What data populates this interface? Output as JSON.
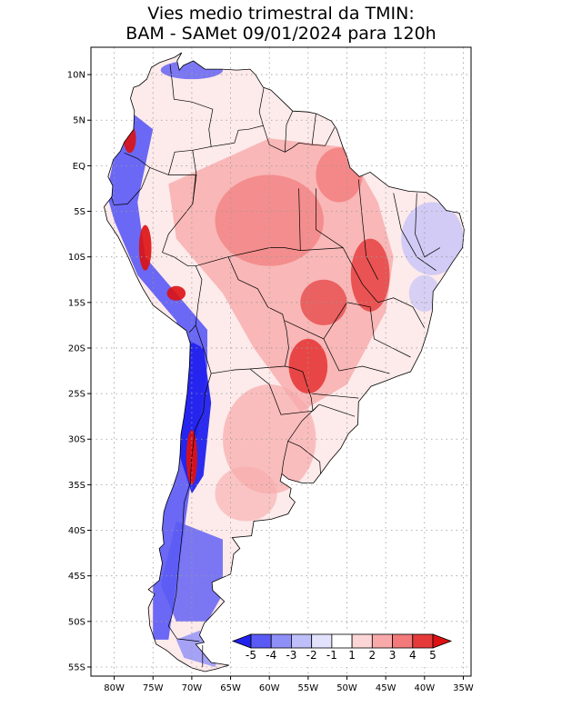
{
  "title": {
    "line1": "Vies medio trimestral da TMIN:",
    "line2": "BAM - SAMet 09/01/2024  para 120h"
  },
  "map": {
    "lon_range": [
      -83,
      -34
    ],
    "lat_range": [
      -56,
      13
    ],
    "grid": true,
    "lon_ticks": [
      {
        "v": -80,
        "label": "80W"
      },
      {
        "v": -75,
        "label": "75W"
      },
      {
        "v": -70,
        "label": "70W"
      },
      {
        "v": -65,
        "label": "65W"
      },
      {
        "v": -60,
        "label": "60W"
      },
      {
        "v": -55,
        "label": "55W"
      },
      {
        "v": -50,
        "label": "50W"
      },
      {
        "v": -45,
        "label": "45W"
      },
      {
        "v": -40,
        "label": "40W"
      },
      {
        "v": -35,
        "label": "35W"
      }
    ],
    "lat_ticks": [
      {
        "v": 10,
        "label": "10N"
      },
      {
        "v": 5,
        "label": "5N"
      },
      {
        "v": 0,
        "label": "EQ"
      },
      {
        "v": -5,
        "label": "5S"
      },
      {
        "v": -10,
        "label": "10S"
      },
      {
        "v": -15,
        "label": "15S"
      },
      {
        "v": -20,
        "label": "20S"
      },
      {
        "v": -25,
        "label": "25S"
      },
      {
        "v": -30,
        "label": "30S"
      },
      {
        "v": -35,
        "label": "35S"
      },
      {
        "v": -40,
        "label": "40S"
      },
      {
        "v": -45,
        "label": "45S"
      },
      {
        "v": -50,
        "label": "50S"
      },
      {
        "v": -55,
        "label": "55S"
      }
    ]
  },
  "colorbar": {
    "labels": [
      "-5",
      "-4",
      "-3",
      "-2",
      "-1",
      "1",
      "2",
      "3",
      "4",
      "5"
    ],
    "colors": [
      "#2222ee",
      "#5a5af5",
      "#8f8ff8",
      "#bebefa",
      "#e2e2fc",
      "#ffffff",
      "#fcd6d6",
      "#f8aaaa",
      "#f27a7a",
      "#e63a3a",
      "#dd1111"
    ]
  }
}
